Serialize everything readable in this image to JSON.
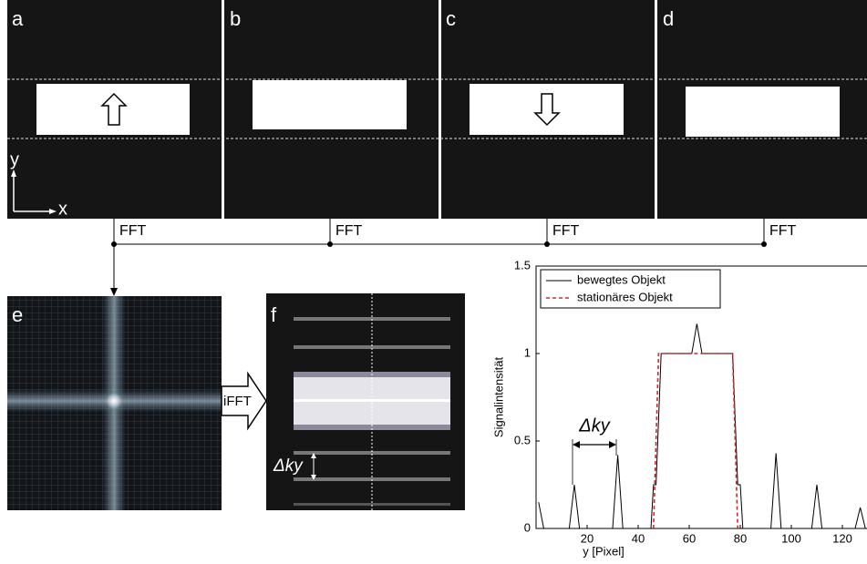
{
  "panels": [
    "a",
    "b",
    "c",
    "d",
    "e",
    "f"
  ],
  "axes_labels": {
    "y": "y",
    "x": "x"
  },
  "fft_labels": [
    "FFT",
    "FFT",
    "FFT",
    "FFT"
  ],
  "ifft_label": "iFFT",
  "panel_f_annotation": "Δky",
  "chart_data": {
    "type": "line",
    "xlabel": "y [Pixel]",
    "ylabel": "Signalintensität",
    "xlim": [
      0,
      130
    ],
    "ylim": [
      0,
      1.5
    ],
    "xticks": [
      20,
      40,
      60,
      80,
      100,
      120
    ],
    "yticks": [
      0,
      0.5,
      1,
      1.5
    ],
    "legend": "upper left",
    "annotation": "Δky",
    "series": [
      {
        "name": "bewegtes Objekt",
        "color": "#000000",
        "dash": "solid",
        "x": [
          1,
          3,
          13,
          15,
          17,
          30,
          32,
          34,
          45,
          46,
          47,
          49,
          61,
          63,
          65,
          77,
          79,
          80,
          81,
          92,
          94,
          96,
          108,
          110,
          112,
          125,
          127,
          129
        ],
        "values": [
          0.15,
          0,
          0,
          0.25,
          0,
          0,
          0.42,
          0,
          0,
          0.25,
          0.25,
          1,
          1,
          1.17,
          1,
          1,
          0.25,
          0.25,
          0,
          0,
          0.43,
          0,
          0,
          0.25,
          0,
          0,
          0.12,
          0
        ]
      },
      {
        "name": "stationäres Objekt",
        "color": "#d62728",
        "dash": "dashed",
        "x": [
          46,
          48,
          77,
          79
        ],
        "values": [
          0,
          1,
          1,
          0
        ]
      }
    ]
  }
}
